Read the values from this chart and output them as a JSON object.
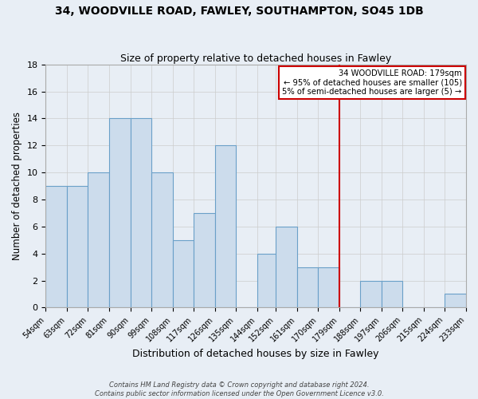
{
  "title": "34, WOODVILLE ROAD, FAWLEY, SOUTHAMPTON, SO45 1DB",
  "subtitle": "Size of property relative to detached houses in Fawley",
  "xlabel": "Distribution of detached houses by size in Fawley",
  "ylabel": "Number of detached properties",
  "bar_color": "#ccdcec",
  "bar_edge_color": "#6aa0c8",
  "grid_color": "#cccccc",
  "background_color": "#e8eef5",
  "annotation_box_color": "#cc0000",
  "vline_color": "#cc0000",
  "vline_value": 179,
  "bins": [
    54,
    63,
    72,
    81,
    90,
    99,
    108,
    117,
    126,
    135,
    144,
    152,
    161,
    170,
    179,
    188,
    197,
    206,
    215,
    224,
    233
  ],
  "counts": [
    9,
    9,
    10,
    14,
    14,
    10,
    5,
    7,
    12,
    0,
    4,
    6,
    3,
    3,
    0,
    2,
    2,
    0,
    0,
    1,
    0
  ],
  "annotation_title": "34 WOODVILLE ROAD: 179sqm",
  "annotation_line1": "← 95% of detached houses are smaller (105)",
  "annotation_line2": "5% of semi-detached houses are larger (5) →",
  "footer1": "Contains HM Land Registry data © Crown copyright and database right 2024.",
  "footer2": "Contains public sector information licensed under the Open Government Licence v3.0.",
  "ylim": [
    0,
    18
  ],
  "yticks": [
    0,
    2,
    4,
    6,
    8,
    10,
    12,
    14,
    16,
    18
  ]
}
